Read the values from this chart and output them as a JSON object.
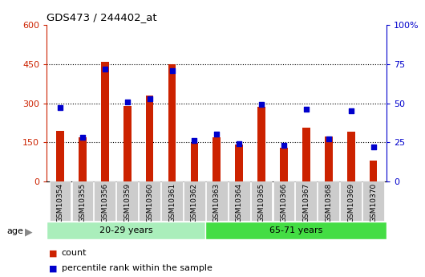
{
  "title": "GDS473 / 244402_at",
  "samples": [
    "GSM10354",
    "GSM10355",
    "GSM10356",
    "GSM10359",
    "GSM10360",
    "GSM10361",
    "GSM10362",
    "GSM10363",
    "GSM10364",
    "GSM10365",
    "GSM10366",
    "GSM10367",
    "GSM10368",
    "GSM10369",
    "GSM10370"
  ],
  "counts": [
    195,
    170,
    460,
    290,
    330,
    450,
    148,
    168,
    143,
    285,
    128,
    205,
    172,
    190,
    80
  ],
  "percentile_ranks": [
    47,
    28,
    72,
    51,
    53,
    71,
    26,
    30,
    24,
    49,
    23,
    46,
    27,
    45,
    22
  ],
  "group1_label": "20-29 years",
  "group2_label": "65-71 years",
  "group1_count": 7,
  "group2_count": 8,
  "ylim_left": [
    0,
    600
  ],
  "ylim_right": [
    0,
    100
  ],
  "yticks_left": [
    0,
    150,
    300,
    450,
    600
  ],
  "yticks_right": [
    0,
    25,
    50,
    75,
    100
  ],
  "yticklabels_left": [
    "0",
    "150",
    "300",
    "450",
    "600"
  ],
  "yticklabels_right": [
    "0",
    "25",
    "50",
    "75",
    "100%"
  ],
  "bar_color": "#cc2200",
  "dot_color": "#0000cc",
  "bg_plot": "#ffffff",
  "bg_xtick": "#cccccc",
  "group1_bg": "#aaeebb",
  "group2_bg": "#44dd44",
  "legend_count_label": "count",
  "legend_pct_label": "percentile rank within the sample",
  "age_label": "age",
  "bar_width": 0.35,
  "grid_color": "black",
  "grid_linestyle": ":",
  "grid_linewidth": 0.8,
  "grid_yvals": [
    150,
    300,
    450
  ]
}
